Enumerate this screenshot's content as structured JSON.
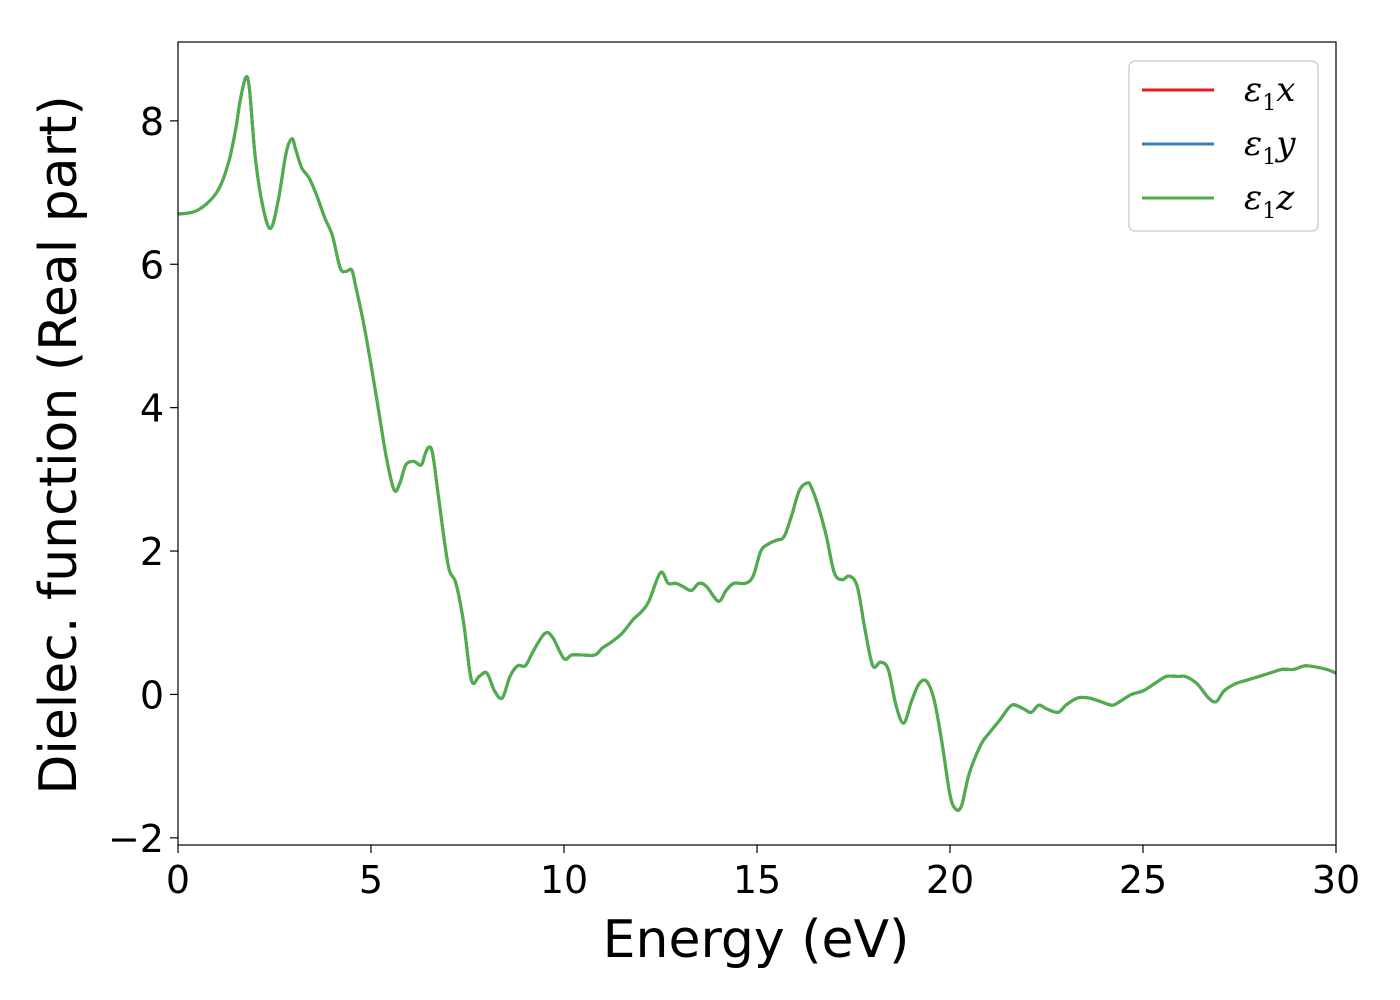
{
  "chart_data": {
    "type": "line",
    "xlabel": "Energy (eV)",
    "ylabel": "Dielec. function (Real part)",
    "xlim": [
      0,
      30
    ],
    "ylim": [
      -2.1,
      9.1
    ],
    "xticks": [
      0,
      5,
      10,
      15,
      20,
      25,
      30
    ],
    "xtick_labels": [
      "0",
      "5",
      "10",
      "15",
      "20",
      "25",
      "30"
    ],
    "yticks": [
      -2,
      0,
      2,
      4,
      6,
      8
    ],
    "ytick_labels": [
      "−2",
      "0",
      "2",
      "4",
      "6",
      "8"
    ],
    "grid": false,
    "legend_position": "top-right",
    "x": [
      0,
      0.5,
      1.0,
      1.3,
      1.5,
      1.6,
      1.75,
      1.85,
      2.0,
      2.2,
      2.4,
      2.6,
      2.8,
      2.95,
      3.05,
      3.2,
      3.4,
      3.6,
      3.8,
      4.0,
      4.2,
      4.35,
      4.5,
      4.6,
      4.8,
      5.0,
      5.2,
      5.4,
      5.6,
      5.75,
      5.9,
      6.1,
      6.3,
      6.4,
      6.5,
      6.6,
      6.75,
      7.0,
      7.2,
      7.4,
      7.6,
      7.8,
      8.0,
      8.2,
      8.4,
      8.6,
      8.8,
      9.0,
      9.2,
      9.5,
      9.7,
      10.0,
      10.2,
      10.5,
      10.8,
      11.0,
      11.2,
      11.5,
      11.8,
      12.0,
      12.2,
      12.5,
      12.7,
      12.9,
      13.1,
      13.3,
      13.5,
      13.7,
      14.0,
      14.2,
      14.4,
      14.7,
      14.9,
      15.1,
      15.3,
      15.5,
      15.7,
      15.9,
      16.1,
      16.3,
      16.4,
      16.6,
      16.8,
      17.0,
      17.2,
      17.4,
      17.6,
      17.8,
      18.0,
      18.2,
      18.4,
      18.6,
      18.8,
      19.0,
      19.2,
      19.4,
      19.6,
      19.8,
      20.0,
      20.15,
      20.3,
      20.5,
      20.8,
      21.0,
      21.3,
      21.6,
      21.9,
      22.1,
      22.3,
      22.5,
      22.8,
      23.0,
      23.3,
      23.6,
      23.9,
      24.2,
      24.4,
      24.7,
      25.0,
      25.3,
      25.6,
      25.9,
      26.1,
      26.4,
      26.7,
      26.9,
      27.1,
      27.4,
      27.7,
      28.0,
      28.3,
      28.6,
      28.9,
      29.2,
      29.5,
      29.75,
      30.0
    ],
    "y": [
      6.7,
      6.75,
      7.0,
      7.4,
      7.9,
      8.25,
      8.6,
      8.45,
      7.5,
      6.8,
      6.5,
      6.9,
      7.55,
      7.75,
      7.6,
      7.35,
      7.2,
      6.95,
      6.65,
      6.4,
      5.95,
      5.9,
      5.92,
      5.7,
      5.2,
      4.6,
      3.95,
      3.3,
      2.85,
      2.95,
      3.2,
      3.25,
      3.2,
      3.35,
      3.45,
      3.35,
      2.75,
      1.8,
      1.55,
      1.0,
      0.2,
      0.25,
      0.3,
      0.05,
      -0.05,
      0.25,
      0.4,
      0.4,
      0.6,
      0.85,
      0.8,
      0.5,
      0.55,
      0.55,
      0.55,
      0.65,
      0.72,
      0.85,
      1.05,
      1.15,
      1.3,
      1.7,
      1.55,
      1.55,
      1.5,
      1.45,
      1.55,
      1.5,
      1.3,
      1.45,
      1.55,
      1.55,
      1.65,
      2.0,
      2.1,
      2.15,
      2.2,
      2.5,
      2.85,
      2.95,
      2.9,
      2.6,
      2.2,
      1.7,
      1.6,
      1.65,
      1.5,
      0.9,
      0.4,
      0.45,
      0.35,
      -0.15,
      -0.4,
      -0.1,
      0.15,
      0.18,
      -0.1,
      -0.7,
      -1.4,
      -1.6,
      -1.55,
      -1.1,
      -0.7,
      -0.55,
      -0.35,
      -0.15,
      -0.2,
      -0.25,
      -0.15,
      -0.2,
      -0.25,
      -0.15,
      -0.05,
      -0.05,
      -0.1,
      -0.15,
      -0.1,
      0.0,
      0.05,
      0.15,
      0.25,
      0.25,
      0.25,
      0.15,
      -0.05,
      -0.1,
      0.05,
      0.15,
      0.2,
      0.25,
      0.3,
      0.35,
      0.35,
      0.4,
      0.38,
      0.35,
      0.3
    ],
    "series": [
      {
        "name": "x",
        "color": "#e41a1c"
      },
      {
        "name": "y",
        "color": "#377eb8"
      },
      {
        "name": "z",
        "color": "#4daf4a"
      }
    ]
  }
}
